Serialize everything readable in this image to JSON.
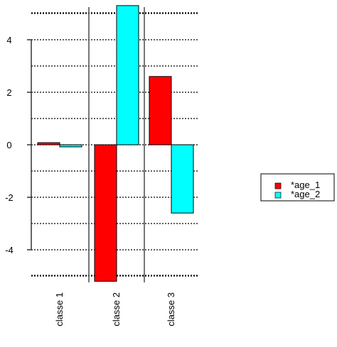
{
  "chart_data": {
    "type": "bar",
    "title": "",
    "xlabel": "",
    "ylabel": "",
    "categories": [
      "classe 1",
      "classe 2",
      "classe 3"
    ],
    "series": [
      {
        "name": "*age_1",
        "color": "#ff0000",
        "values": [
          0.08,
          -5.2,
          2.6
        ]
      },
      {
        "name": "*age_2",
        "color": "#00ffff",
        "values": [
          -0.08,
          5.3,
          -2.6
        ]
      }
    ],
    "yticks": [
      -4,
      -2,
      0,
      2,
      4
    ],
    "ylim": [
      -5.3,
      5.3
    ],
    "grid": true,
    "grid_style": "dotted-horizontal",
    "legend_position": "right",
    "category_label_orientation": "vertical"
  }
}
